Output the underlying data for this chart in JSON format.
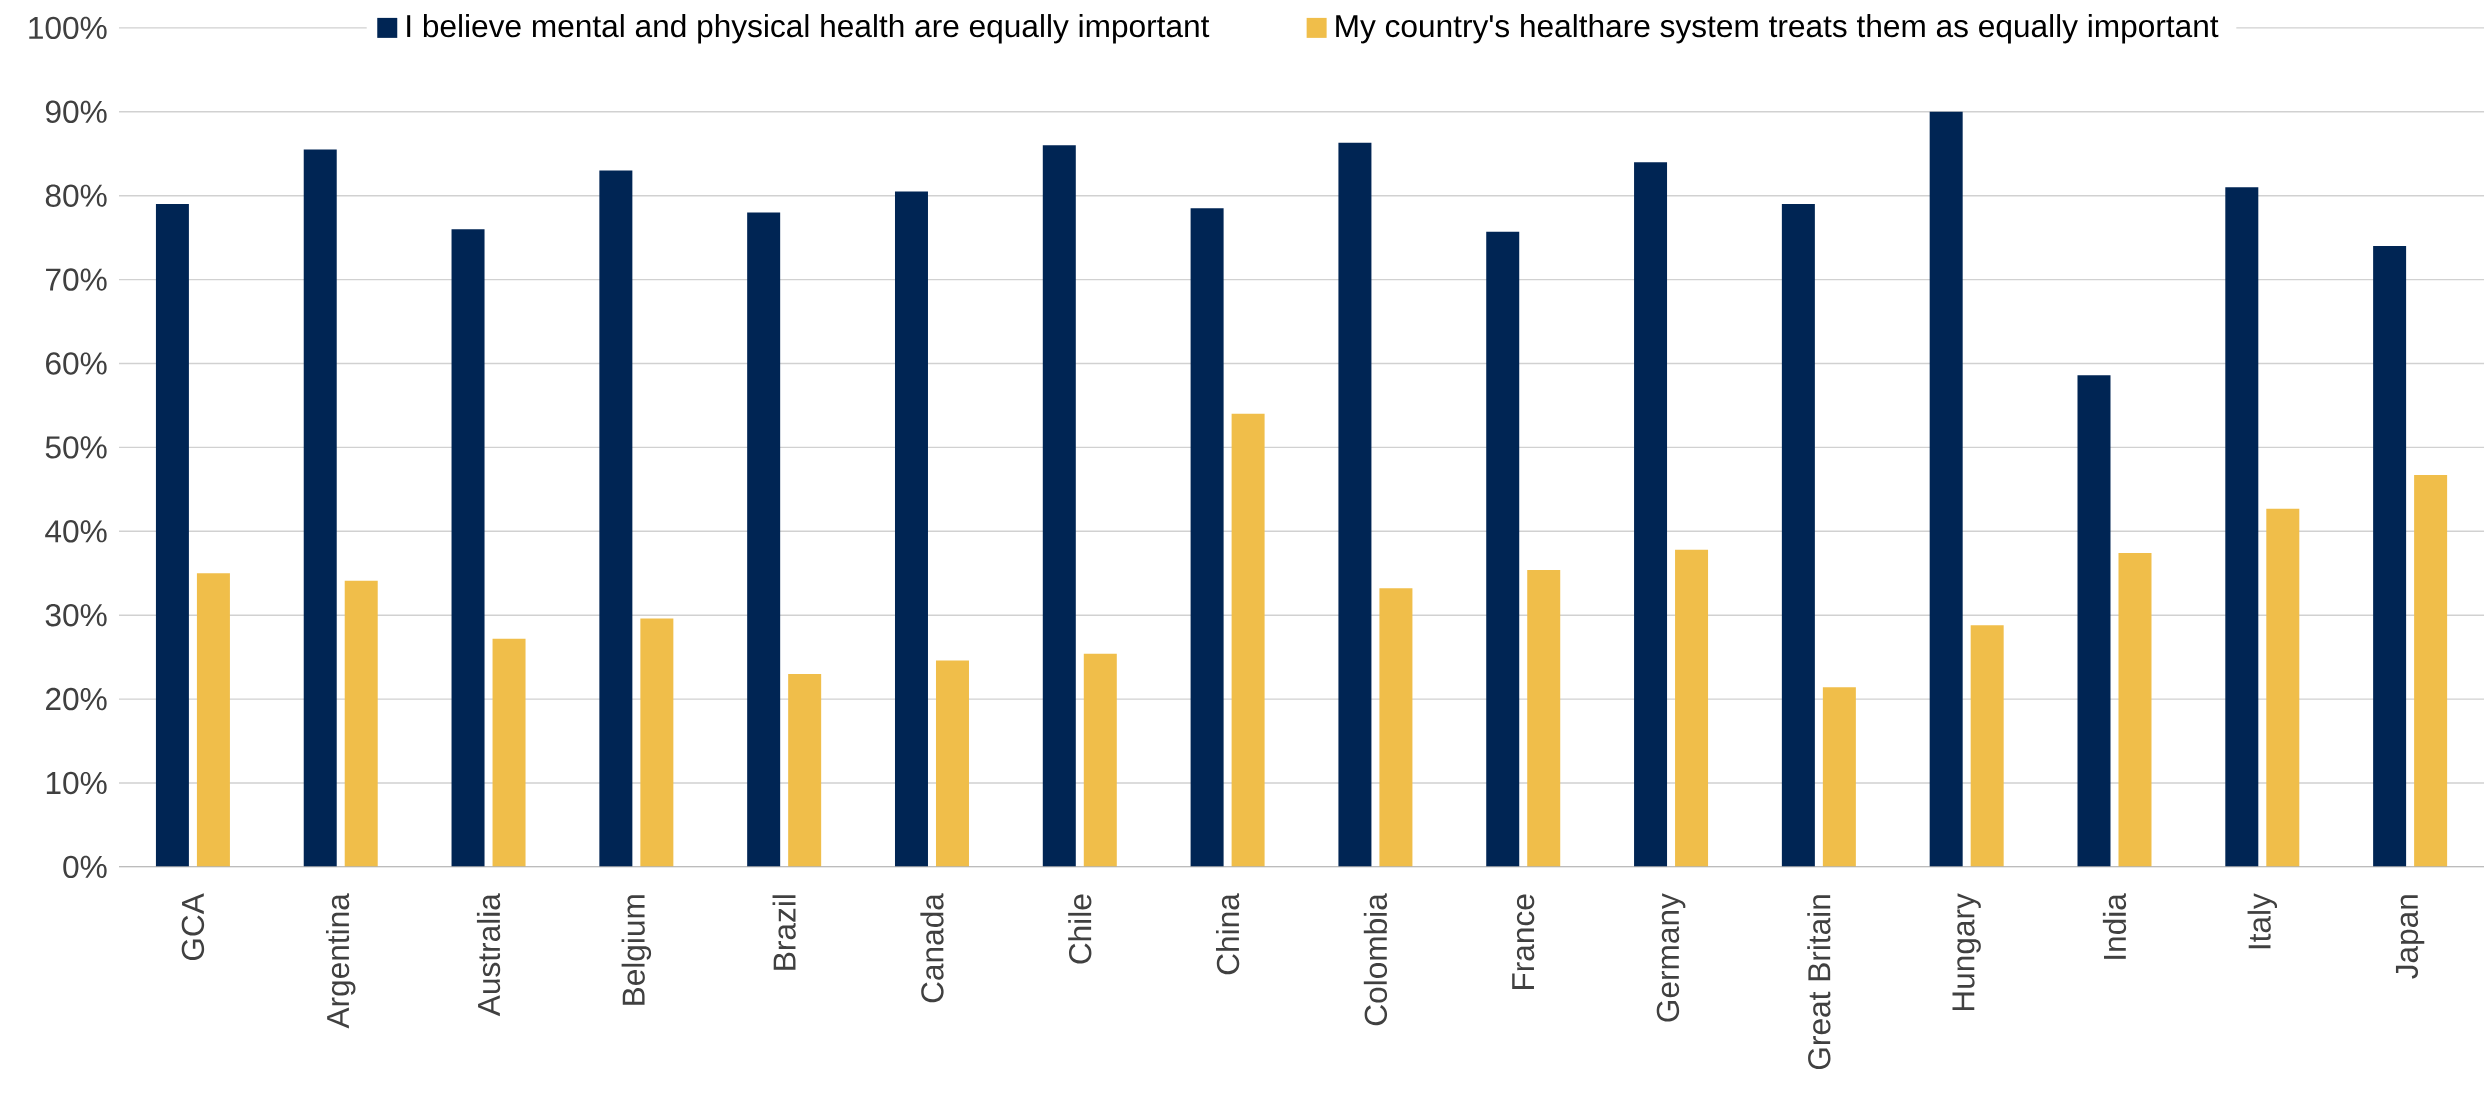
{
  "chart_data": {
    "type": "bar",
    "categories": [
      "GCA",
      "Argentina",
      "Australia",
      "Belgium",
      "Brazil",
      "Canada",
      "Chile",
      "China",
      "Colombia",
      "France",
      "Germany",
      "Great Britain",
      "Hungary",
      "India",
      "Italy",
      "Japan"
    ],
    "series": [
      {
        "name": "I believe mental and physical health are equally important",
        "color": "#002554",
        "values": [
          79,
          85.5,
          76,
          83,
          78,
          80.5,
          86,
          78.5,
          86.3,
          75.7,
          84,
          79,
          90,
          58.6,
          81,
          74
        ]
      },
      {
        "name": "My country's healthare system treats them as equally important",
        "color": "#f0be4a",
        "values": [
          35,
          34.1,
          27.2,
          29.6,
          23,
          24.6,
          25.4,
          54,
          33.2,
          35.4,
          37.8,
          21.4,
          28.8,
          37.4,
          42.7,
          46.7
        ]
      }
    ],
    "ylim": [
      0,
      100
    ],
    "yticks": [
      {
        "value": 0,
        "label": "0%"
      },
      {
        "value": 10,
        "label": "10%"
      },
      {
        "value": 20,
        "label": "20%"
      },
      {
        "value": 30,
        "label": "30%"
      },
      {
        "value": 40,
        "label": "40%"
      },
      {
        "value": 50,
        "label": "50%"
      },
      {
        "value": 60,
        "label": "60%"
      },
      {
        "value": 70,
        "label": "70%"
      },
      {
        "value": 80,
        "label": "80%"
      },
      {
        "value": 90,
        "label": "90%"
      },
      {
        "value": 100,
        "label": "100%"
      }
    ],
    "grid": "y",
    "legend": "top"
  }
}
